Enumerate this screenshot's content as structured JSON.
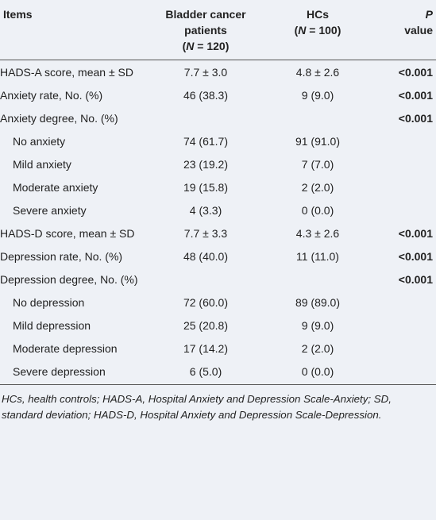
{
  "table": {
    "header": {
      "items": "Items",
      "patients": {
        "title": "Bladder cancer patients",
        "n": [
          "(",
          "N",
          " = 120)"
        ]
      },
      "hcs": {
        "title": "HCs",
        "n": [
          "(",
          "N",
          " = 100)"
        ]
      },
      "p": [
        "P",
        "value"
      ]
    },
    "rows": [
      {
        "item": "HADS-A score, mean ± SD",
        "patients": "7.7 ± 3.0",
        "hcs": "4.8 ± 2.6",
        "p": "<0.001"
      },
      {
        "item": "Anxiety rate, No. (%)",
        "patients": "46 (38.3)",
        "hcs": "9 (9.0)",
        "p": "<0.001"
      },
      {
        "item": "Anxiety degree, No. (%)",
        "p": "<0.001",
        "levels": [
          {
            "item": "No anxiety",
            "patients": "74 (61.7)",
            "hcs": "91 (91.0)"
          },
          {
            "item": "Mild anxiety",
            "patients": "23 (19.2)",
            "hcs": "7 (7.0)"
          },
          {
            "item": "Moderate anxiety",
            "patients": "19 (15.8)",
            "hcs": "2 (2.0)"
          },
          {
            "item": "Severe anxiety",
            "patients": "4 (3.3)",
            "hcs": "0 (0.0)"
          }
        ]
      },
      {
        "item": "HADS-D score, mean ± SD",
        "patients": "7.7 ± 3.3",
        "hcs": "4.3 ± 2.6",
        "p": "<0.001"
      },
      {
        "item": "Depression rate, No. (%)",
        "patients": "48 (40.0)",
        "hcs": "11 (11.0)",
        "p": "<0.001"
      },
      {
        "item": "Depression degree, No. (%)",
        "p": "<0.001",
        "levels": [
          {
            "item": "No depression",
            "patients": "72 (60.0)",
            "hcs": "89 (89.0)"
          },
          {
            "item": "Mild depression",
            "patients": "25 (20.8)",
            "hcs": "9 (9.0)"
          },
          {
            "item": "Moderate depression",
            "patients": "17 (14.2)",
            "hcs": "2 (2.0)"
          },
          {
            "item": "Severe depression",
            "patients": "6 (5.0)",
            "hcs": "0 (0.0)"
          }
        ]
      }
    ],
    "footnote": "HCs, health controls; HADS-A, Hospital Anxiety and Depression Scale-Anxiety; SD, standard deviation; HADS-D, Hospital Anxiety and Depression Scale-Depression."
  }
}
